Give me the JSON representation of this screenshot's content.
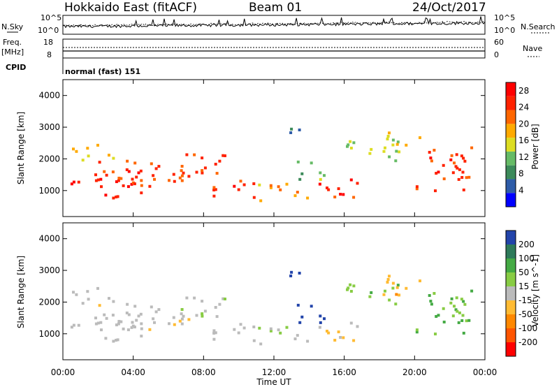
{
  "header": {
    "title": "Hokkaido East (fitACF)",
    "beam": "Beam 01",
    "date": "24/Oct/2017"
  },
  "side_labels": {
    "nsky": "N.Sky",
    "freq": "Freq.",
    "freq_unit": "[MHz]",
    "cpid": "CPID",
    "nsearch": "N.Search",
    "nave": "Nave",
    "cpid_value": "normal (fast) 151"
  },
  "noise_axis": {
    "left": [
      "10^5",
      "10^0"
    ],
    "right": [
      "10^5",
      "10^0"
    ]
  },
  "freq_axis": {
    "left": [
      "18",
      "8"
    ],
    "right": [
      "60",
      "0"
    ]
  },
  "colors": {
    "power_scale": [
      "#0000ff",
      "#2e5ca8",
      "#3c8a5a",
      "#66bb66",
      "#dddd22",
      "#ffaa00",
      "#ff6600",
      "#ff2200",
      "#ff0000"
    ],
    "velocity_scale": [
      "#ff0000",
      "#ff5500",
      "#ff8800",
      "#ffbb33",
      "#bbbbbb",
      "#88cc44",
      "#44aa44",
      "#2e7a5a",
      "#2244aa"
    ]
  },
  "chart_data": [
    {
      "type": "heatmap",
      "title": "Power",
      "xlabel": "Time UT",
      "ylabel": "Slant Range [km]",
      "xlim": [
        "00:00",
        "24:00"
      ],
      "x_ticks": [
        "00:00",
        "04:00",
        "08:00",
        "12:00",
        "16:00",
        "20:00",
        "00:00"
      ],
      "ylim": [
        180,
        4500
      ],
      "y_ticks": [
        1000,
        2000,
        3000,
        4000
      ],
      "colorbar": {
        "label": "Power [dB]",
        "ticks": [
          4,
          8,
          12,
          16,
          20,
          24,
          28
        ],
        "range": [
          0,
          30
        ]
      }
    },
    {
      "type": "heatmap",
      "title": "Velocity",
      "xlabel": "Time UT",
      "ylabel": "Slant Range [km]",
      "xlim": [
        "00:00",
        "24:00"
      ],
      "x_ticks": [
        "00:00",
        "04:00",
        "08:00",
        "12:00",
        "16:00",
        "20:00",
        "00:00"
      ],
      "ylim": [
        180,
        4500
      ],
      "y_ticks": [
        1000,
        2000,
        3000,
        4000
      ],
      "colorbar": {
        "label": "Velocity [m s^-1]",
        "ticks": [
          200,
          100,
          50,
          15,
          -15,
          -50,
          -100,
          -200
        ]
      }
    }
  ]
}
